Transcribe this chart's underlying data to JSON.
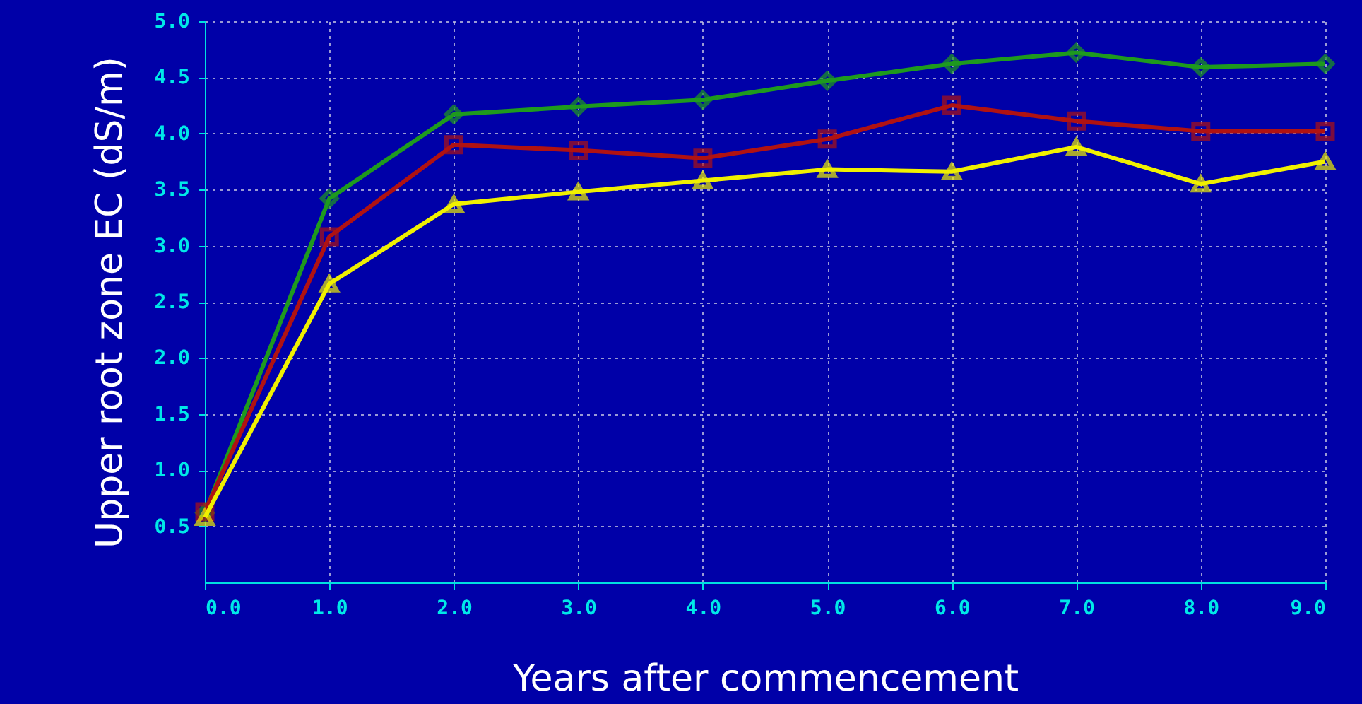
{
  "chart_data": {
    "type": "line",
    "xlabel": "Years after commencement",
    "ylabel": "Upper root zone EC (dS/m)",
    "x": [
      0,
      1,
      2,
      3,
      4,
      5,
      6,
      7,
      8,
      9
    ],
    "series": [
      {
        "color": "#1e9a1e",
        "marker": "diamond",
        "values": [
          0.62,
          3.42,
          4.17,
          4.24,
          4.3,
          4.47,
          4.62,
          4.72,
          4.59,
          4.62
        ]
      },
      {
        "color": "#b01212",
        "marker": "square",
        "values": [
          0.63,
          3.08,
          3.9,
          3.85,
          3.78,
          3.95,
          4.25,
          4.11,
          4.02,
          4.02
        ]
      },
      {
        "color": "#f0f000",
        "marker": "triangle",
        "values": [
          0.58,
          2.66,
          3.37,
          3.48,
          3.58,
          3.68,
          3.66,
          3.88,
          3.55,
          3.75
        ]
      }
    ],
    "xlim": [
      0,
      9
    ],
    "xticks": [
      {
        "value": 0,
        "label": "0.0"
      },
      {
        "value": 1,
        "label": "1.0"
      },
      {
        "value": 2,
        "label": "2.0"
      },
      {
        "value": 3,
        "label": "3.0"
      },
      {
        "value": 4,
        "label": "4.0"
      },
      {
        "value": 5,
        "label": "5.0"
      },
      {
        "value": 6,
        "label": "6.0"
      },
      {
        "value": 7,
        "label": "7.0"
      },
      {
        "value": 8,
        "label": "8.0"
      },
      {
        "value": 9,
        "label": "9.0"
      }
    ],
    "ylim": [
      0,
      5
    ],
    "yticks": [
      0.5,
      {
        "value": 1,
        "label": "1.0"
      },
      1.5,
      {
        "value": 2,
        "label": "2.0"
      },
      2.5,
      {
        "value": 3,
        "label": "3.0"
      },
      3.5,
      {
        "value": 4,
        "label": "4.0"
      },
      4.5,
      {
        "value": 5,
        "label": "5.0"
      }
    ],
    "grid": true,
    "line_style": "solid"
  }
}
